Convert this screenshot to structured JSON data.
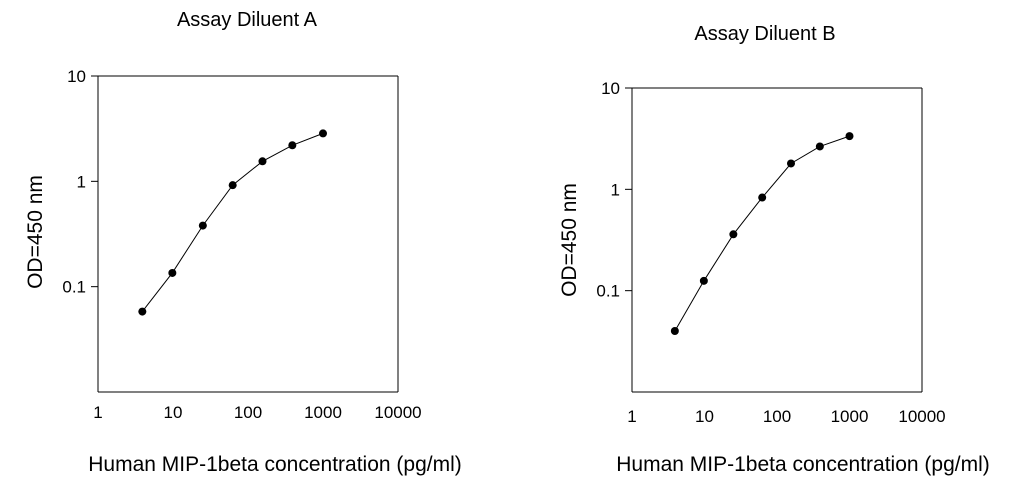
{
  "chart_data": [
    {
      "type": "line",
      "title": "Assay Diluent A",
      "xlabel": "Human MIP-1beta concentration (pg/ml)",
      "ylabel": "OD=450 nm",
      "x_scale": "log",
      "y_scale": "log",
      "xlim": [
        1,
        10000
      ],
      "ylim": [
        0.01,
        10
      ],
      "x_ticks": [
        "1",
        "10",
        "100",
        "1000",
        "10000"
      ],
      "y_ticks": [
        "10",
        "1",
        "0.1"
      ],
      "grid": false,
      "series": [
        {
          "x": [
            3.9,
            9.8,
            25,
            62.5,
            156,
            390,
            1000
          ],
          "y": [
            0.058,
            0.135,
            0.38,
            0.92,
            1.55,
            2.2,
            2.85
          ]
        }
      ]
    },
    {
      "type": "line",
      "title": "Assay Diluent B",
      "xlabel": "Human MIP-1beta concentration (pg/ml)",
      "ylabel": "OD=450 nm",
      "x_scale": "log",
      "y_scale": "log",
      "xlim": [
        1,
        10000
      ],
      "ylim": [
        0.01,
        10
      ],
      "x_ticks": [
        "1",
        "10",
        "100",
        "1000",
        "10000"
      ],
      "y_ticks": [
        "10",
        "1",
        "0.1"
      ],
      "grid": false,
      "series": [
        {
          "x": [
            3.9,
            9.8,
            25,
            62.5,
            156,
            390,
            1000
          ],
          "y": [
            0.04,
            0.125,
            0.36,
            0.83,
            1.8,
            2.65,
            3.35
          ]
        }
      ]
    }
  ]
}
